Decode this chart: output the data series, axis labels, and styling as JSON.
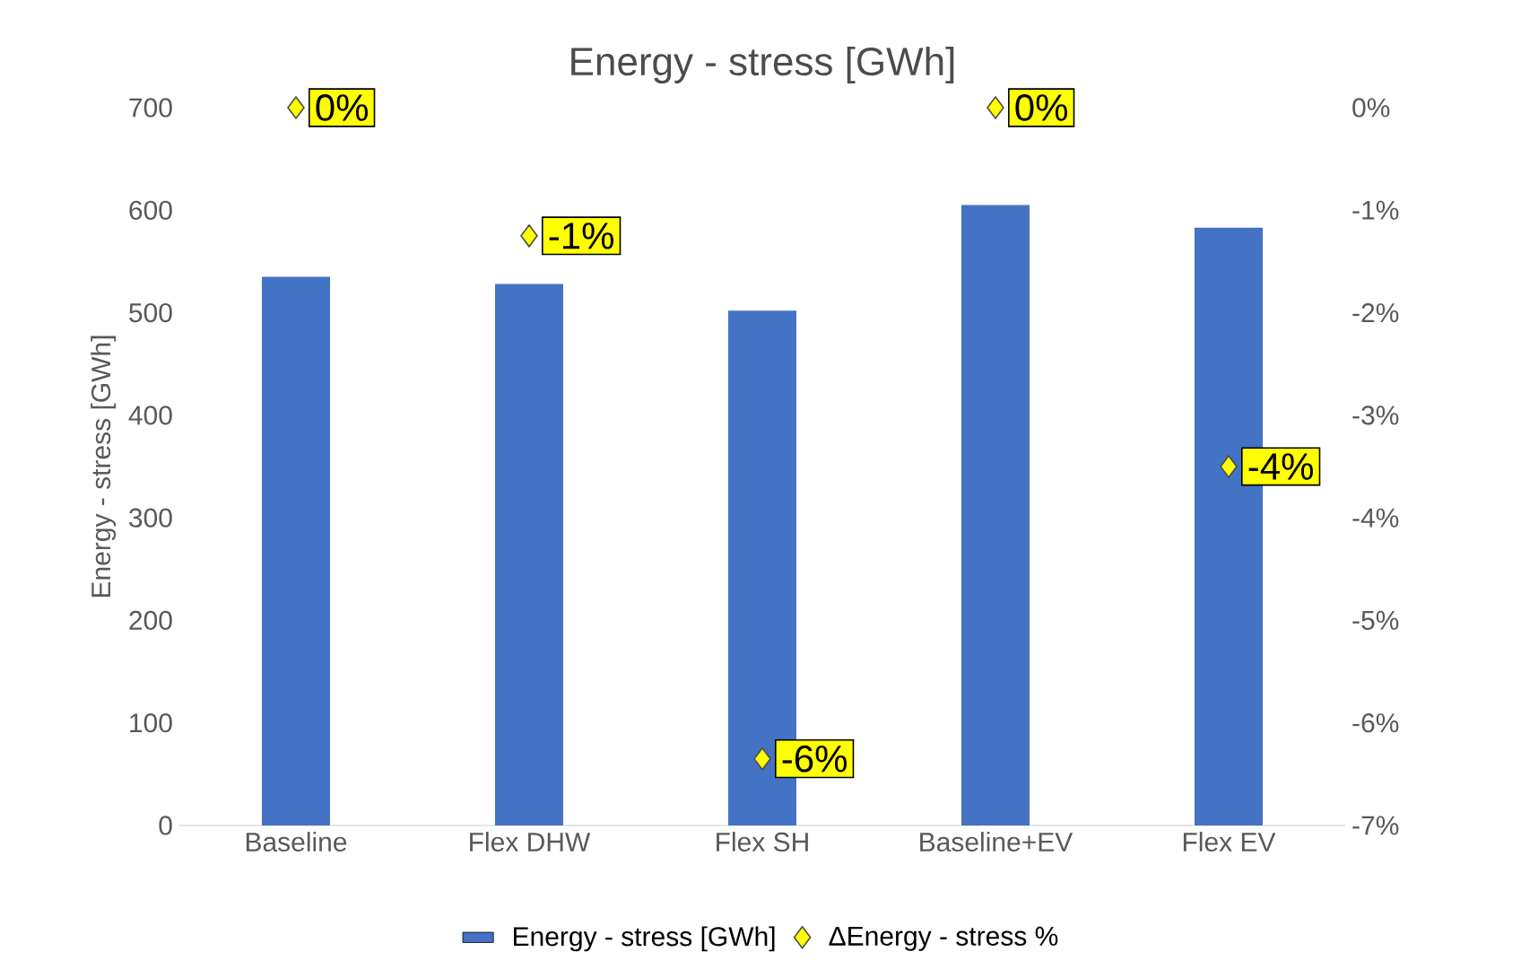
{
  "chart_data": {
    "type": "bar",
    "title": "Energy - stress [GWh]",
    "ylabel": "Energy - stress [GWh]",
    "categories": [
      "Baseline",
      "Flex DHW",
      "Flex SH",
      "Baseline+EV",
      "Flex EV"
    ],
    "series": [
      {
        "name": "Energy - stress [GWh]",
        "color": "#4472c4",
        "values": [
          535,
          528,
          502,
          605,
          583
        ]
      },
      {
        "name": "ΔEnergy - stress %",
        "type": "scatter",
        "axis": "y2",
        "color": "#ffff00",
        "values": [
          0,
          -1.25,
          -6.35,
          0,
          -3.5
        ],
        "value_labels": [
          "0%",
          "-1%",
          "-6%",
          "0%",
          "-4%"
        ]
      }
    ],
    "ylim": [
      0,
      700
    ],
    "yticks": [
      0,
      100,
      200,
      300,
      400,
      500,
      600,
      700
    ],
    "y2lim": [
      -7,
      0
    ],
    "y2ticks": [
      {
        "value": -7,
        "label": "-7%"
      },
      {
        "value": -6,
        "label": "-6%"
      },
      {
        "value": -5,
        "label": "-5%"
      },
      {
        "value": -4,
        "label": "-4%"
      },
      {
        "value": -3,
        "label": "-3%"
      },
      {
        "value": -2,
        "label": "-2%"
      },
      {
        "value": -1,
        "label": "-1%"
      },
      {
        "value": 0,
        "label": "0%"
      }
    ],
    "marker": "diamond",
    "legend": "bottom",
    "grid": false
  }
}
